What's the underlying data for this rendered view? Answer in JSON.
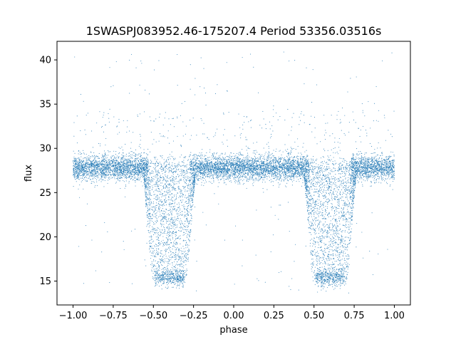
{
  "chart_data": {
    "type": "scatter",
    "title": "1SWASPJ083952.46-175207.4 Period 53356.03516s",
    "xlabel": "phase",
    "ylabel": "flux",
    "xlim": [
      -1.1,
      1.1
    ],
    "ylim": [
      12.3,
      42.1
    ],
    "xticks": [
      -1.0,
      -0.75,
      -0.5,
      -0.25,
      0.0,
      0.25,
      0.5,
      0.75,
      1.0
    ],
    "xtick_labels": [
      "−1.00",
      "−0.75",
      "−0.50",
      "−0.25",
      "0.00",
      "0.25",
      "0.50",
      "0.75",
      "1.00"
    ],
    "yticks": [
      15,
      20,
      25,
      30,
      35,
      40
    ],
    "ytick_labels": [
      "15",
      "20",
      "25",
      "30",
      "35",
      "40"
    ],
    "grid": false,
    "marker_color": "#1f77b4",
    "x_range": [
      -1.0,
      1.0
    ],
    "baseline_flux": 27.8,
    "baseline_scatter": 0.7,
    "eclipses": [
      {
        "phase_start": -0.56,
        "phase_end": -0.24,
        "min_flux": 14.8
      },
      {
        "phase_start": 0.44,
        "phase_end": 0.76,
        "min_flux": 14.8
      }
    ],
    "outlier_range": [
      13.5,
      41.0
    ]
  }
}
